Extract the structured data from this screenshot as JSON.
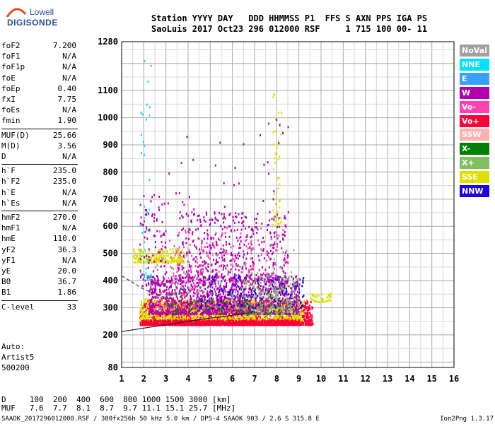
{
  "logo": {
    "line1": "Lowell",
    "line2": "DIGISONDE"
  },
  "header": {
    "labels": "Station YYYY DAY   DDD HHMMSS P1  FFS S AXN PPS IGA PS",
    "values": "SaoLuis 2017 Oct23 296 012000 RSF     1 715 100 00- 11"
  },
  "params": [
    {
      "name": "foF2",
      "value": "7.200"
    },
    {
      "name": "foF1",
      "value": "N/A"
    },
    {
      "name": "foF1p",
      "value": "N/A"
    },
    {
      "name": "foE",
      "value": "N/A"
    },
    {
      "name": "foEp",
      "value": "0.40"
    },
    {
      "name": "fxI",
      "value": "7.75"
    },
    {
      "name": "foEs",
      "value": "N/A"
    },
    {
      "name": "fmin",
      "value": "1.90"
    },
    {
      "name": "MUF(D)",
      "value": "25.66"
    },
    {
      "name": "M(D)",
      "value": "3.56"
    },
    {
      "name": "D",
      "value": "N/A"
    },
    {
      "name": "h`F",
      "value": "235.0"
    },
    {
      "name": "h`F2",
      "value": "235.0"
    },
    {
      "name": "h`E",
      "value": "N/A"
    },
    {
      "name": "h`Es",
      "value": "N/A"
    },
    {
      "name": "hmF2",
      "value": "270.0"
    },
    {
      "name": "hmF1",
      "value": "N/A"
    },
    {
      "name": "hmE",
      "value": "110.0"
    },
    {
      "name": "yF2",
      "value": "36.3"
    },
    {
      "name": "yF1",
      "value": "N/A"
    },
    {
      "name": "yE",
      "value": "20.0"
    },
    {
      "name": "B0",
      "value": "36.7"
    },
    {
      "name": "B1",
      "value": "1.86"
    },
    {
      "name": "C-level",
      "value": "33"
    }
  ],
  "auto": {
    "line1": "Auto:",
    "line2": "Artist5",
    "line3": "500200"
  },
  "legend": [
    {
      "label": "NoVal",
      "color": "#a0a0a0"
    },
    {
      "label": "NNE",
      "color": "#00e0ff"
    },
    {
      "label": "E",
      "color": "#3aa0ff"
    },
    {
      "label": "W",
      "color": "#b000b0"
    },
    {
      "label": "Vo-",
      "color": "#ff40b0"
    },
    {
      "label": "Vo+",
      "color": "#ff0038"
    },
    {
      "label": "SSW",
      "color": "#ffb0b0"
    },
    {
      "label": "X-",
      "color": "#008000"
    },
    {
      "label": "X+",
      "color": "#80c060"
    },
    {
      "label": "SSE",
      "color": "#e0e000"
    },
    {
      "label": "NNW",
      "color": "#2000e0"
    }
  ],
  "dtable": {
    "d_row": "D     100  200  400  600  800 1000 1500 3000 [km]",
    "muf_row": "MUF   7.6  7.7  8.1  8.7  9.7 11.1 15.1 25.7 [MHz]"
  },
  "footer": {
    "left": "SAAOK_2017296012000.RSF / 300fx256h 50 kHz 5.0 km / DPS-4 SAAOK 903 / 2.6 S 315.8 E",
    "right": "Ion2Png 1.3.17"
  },
  "chart_data": {
    "type": "scatter",
    "x_ticks": [
      1,
      2,
      3,
      4,
      5,
      6,
      7,
      8,
      9,
      10,
      11,
      12,
      13,
      14,
      15,
      16
    ],
    "y_ticks": [
      80,
      200,
      300,
      400,
      500,
      600,
      700,
      800,
      900,
      1000,
      1100,
      1280
    ],
    "xlim": [
      1,
      16
    ],
    "ylim": [
      80,
      1280
    ],
    "grid": true,
    "legend_position": "right",
    "profile_solid": [
      [
        1,
        212
      ],
      [
        2,
        225
      ],
      [
        3,
        237
      ],
      [
        4,
        250
      ],
      [
        5,
        262
      ],
      [
        6,
        272
      ],
      [
        7,
        285
      ]
    ],
    "profile_dashed": [
      [
        1,
        418
      ],
      [
        2,
        368
      ],
      [
        3,
        337
      ],
      [
        4,
        316
      ],
      [
        5,
        302
      ],
      [
        6,
        292
      ],
      [
        7,
        285
      ]
    ],
    "trace_clusters": [
      {
        "color": "#ff0038",
        "x": [
          1.8,
          9.6
        ],
        "y": [
          240,
          330
        ],
        "n": 1800
      },
      {
        "color": "#e0e000",
        "x": [
          1.8,
          9.2
        ],
        "y": [
          255,
          335
        ],
        "n": 1000
      },
      {
        "color": "#ff0038",
        "x": [
          1.9,
          9.0
        ],
        "y": [
          240,
          258
        ],
        "n": 1100
      },
      {
        "color": "#b000b0",
        "x": [
          2.2,
          9.0
        ],
        "y": [
          280,
          420
        ],
        "n": 1200
      },
      {
        "color": "#b000b0",
        "x": [
          3.5,
          8.5
        ],
        "y": [
          400,
          660
        ],
        "n": 500
      },
      {
        "color": "#ff40b0",
        "x": [
          2.5,
          8.5
        ],
        "y": [
          300,
          600
        ],
        "n": 300
      },
      {
        "color": "#e0e000",
        "x": [
          1.5,
          3.8
        ],
        "y": [
          470,
          520
        ],
        "n": 200
      },
      {
        "color": "#2000e0",
        "x": [
          4.5,
          9.2
        ],
        "y": [
          300,
          420
        ],
        "n": 200
      },
      {
        "color": "#80c060",
        "x": [
          6.5,
          9.0
        ],
        "y": [
          280,
          430
        ],
        "n": 150
      },
      {
        "color": "#a0a0a0",
        "x": [
          2.5,
          9.0
        ],
        "y": [
          300,
          520
        ],
        "n": 150
      },
      {
        "color": "#008000",
        "x": [
          3.0,
          8.5
        ],
        "y": [
          280,
          380
        ],
        "n": 100
      },
      {
        "color": "#b000b0",
        "x": [
          1.8,
          3.0
        ],
        "y": [
          380,
          720
        ],
        "n": 100
      },
      {
        "color": "#e0e000",
        "x": [
          7.8,
          8.2
        ],
        "y": [
          600,
          1100
        ],
        "n": 50
      },
      {
        "color": "#b000b0",
        "x": [
          3.0,
          8.5
        ],
        "y": [
          650,
          1000
        ],
        "n": 40
      },
      {
        "color": "#00e0ff",
        "x": [
          1.8,
          2.3
        ],
        "y": [
          400,
          1280
        ],
        "n": 40
      },
      {
        "color": "#e0e000",
        "x": [
          9.5,
          10.5
        ],
        "y": [
          325,
          355
        ],
        "n": 40
      }
    ]
  }
}
